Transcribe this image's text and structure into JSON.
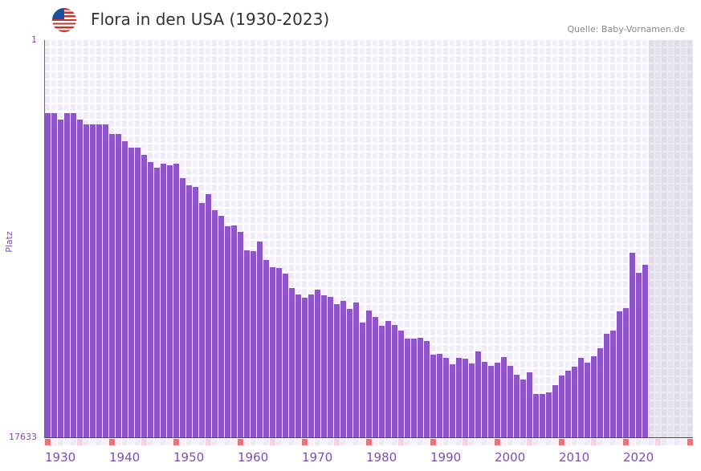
{
  "header": {
    "title": "Flora in den USA (1930-2023)",
    "source": "Quelle: Baby-Vornamen.de",
    "flag_icon": "us-flag-icon"
  },
  "colors": {
    "bar": "#8e55c7",
    "decade_marker": "#e8737a",
    "half_decade_marker": "#f5d5dd",
    "axis_text": "#7a4fb0"
  },
  "chart_data": {
    "type": "bar",
    "title": "Flora in den USA (1930-2023)",
    "ylabel": "Platz",
    "y_scale": "log (inverted, rank 1 at top)",
    "ylim": [
      17633,
      1
    ],
    "y_ticks": [
      "1",
      "17633"
    ],
    "x_ticks": [
      "1930",
      "1940",
      "1950",
      "1960",
      "1970",
      "1980",
      "1990",
      "2000",
      "2010",
      "2020"
    ],
    "x_range": [
      1930,
      2030
    ],
    "categories": [
      1930,
      1931,
      1932,
      1933,
      1934,
      1935,
      1936,
      1937,
      1938,
      1939,
      1940,
      1941,
      1942,
      1943,
      1944,
      1945,
      1946,
      1947,
      1948,
      1949,
      1950,
      1951,
      1952,
      1953,
      1954,
      1955,
      1956,
      1957,
      1958,
      1959,
      1960,
      1961,
      1962,
      1963,
      1964,
      1965,
      1966,
      1967,
      1968,
      1969,
      1970,
      1971,
      1972,
      1973,
      1974,
      1975,
      1976,
      1977,
      1978,
      1979,
      1980,
      1981,
      1982,
      1983,
      1984,
      1985,
      1986,
      1987,
      1988,
      1989,
      1990,
      1991,
      1992,
      1993,
      1994,
      1995,
      1996,
      1997,
      1998,
      1999,
      2000,
      2001,
      2002,
      2003,
      2004,
      2005,
      2006,
      2007,
      2008,
      2009,
      2010,
      2011,
      2012,
      2013,
      2014,
      2015,
      2016,
      2017,
      2018,
      2019,
      2020,
      2021,
      2022,
      2023
    ],
    "values": [
      6,
      6,
      7,
      6,
      6,
      7,
      8,
      8,
      8,
      8,
      10,
      10,
      12,
      14,
      14,
      17,
      20,
      23,
      21,
      22,
      21,
      30,
      36,
      37,
      55,
      44,
      66,
      76,
      98,
      96,
      112,
      177,
      180,
      142,
      224,
      268,
      273,
      313,
      447,
      524,
      567,
      524,
      465,
      534,
      556,
      664,
      614,
      748,
      638,
      1046,
      778,
      911,
      1132,
      1006,
      1110,
      1275,
      1553,
      1553,
      1523,
      1648,
      2306,
      2260,
      2496,
      2923,
      2496,
      2546,
      2865,
      2130,
      2755,
      3042,
      2808,
      2446,
      3042,
      3779,
      4255,
      3559,
      6074,
      6074,
      5841,
      4888,
      3855,
      3423,
      3101,
      2496,
      2808,
      2398,
      1968,
      1379,
      1275,
      794,
      733,
      188,
      307,
      252
    ]
  }
}
